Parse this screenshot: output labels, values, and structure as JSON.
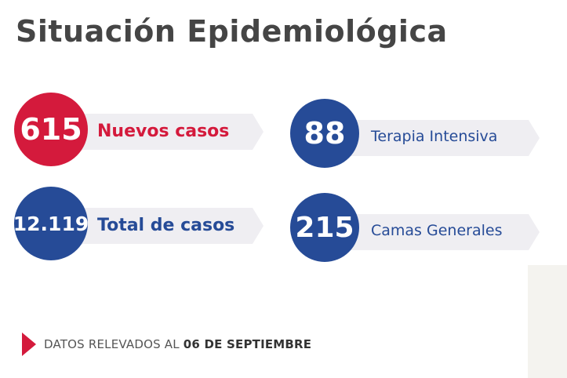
{
  "title": "Situación Epidemiológica",
  "colors": {
    "red": "#d41a3c",
    "blue": "#264b97",
    "band": "#efeef2",
    "title": "#454545"
  },
  "stats": {
    "nuevos": {
      "value": "615",
      "label": "Nuevos casos"
    },
    "total": {
      "value": "12.119",
      "label": "Total de casos"
    },
    "terapia": {
      "value": "88",
      "label": "Terapia Intensiva"
    },
    "camas": {
      "value": "215",
      "label": "Camas Generales"
    }
  },
  "footer": {
    "prefix": "DATOS RELEVADOS AL ",
    "date": "06 DE SEPTIEMBRE"
  }
}
